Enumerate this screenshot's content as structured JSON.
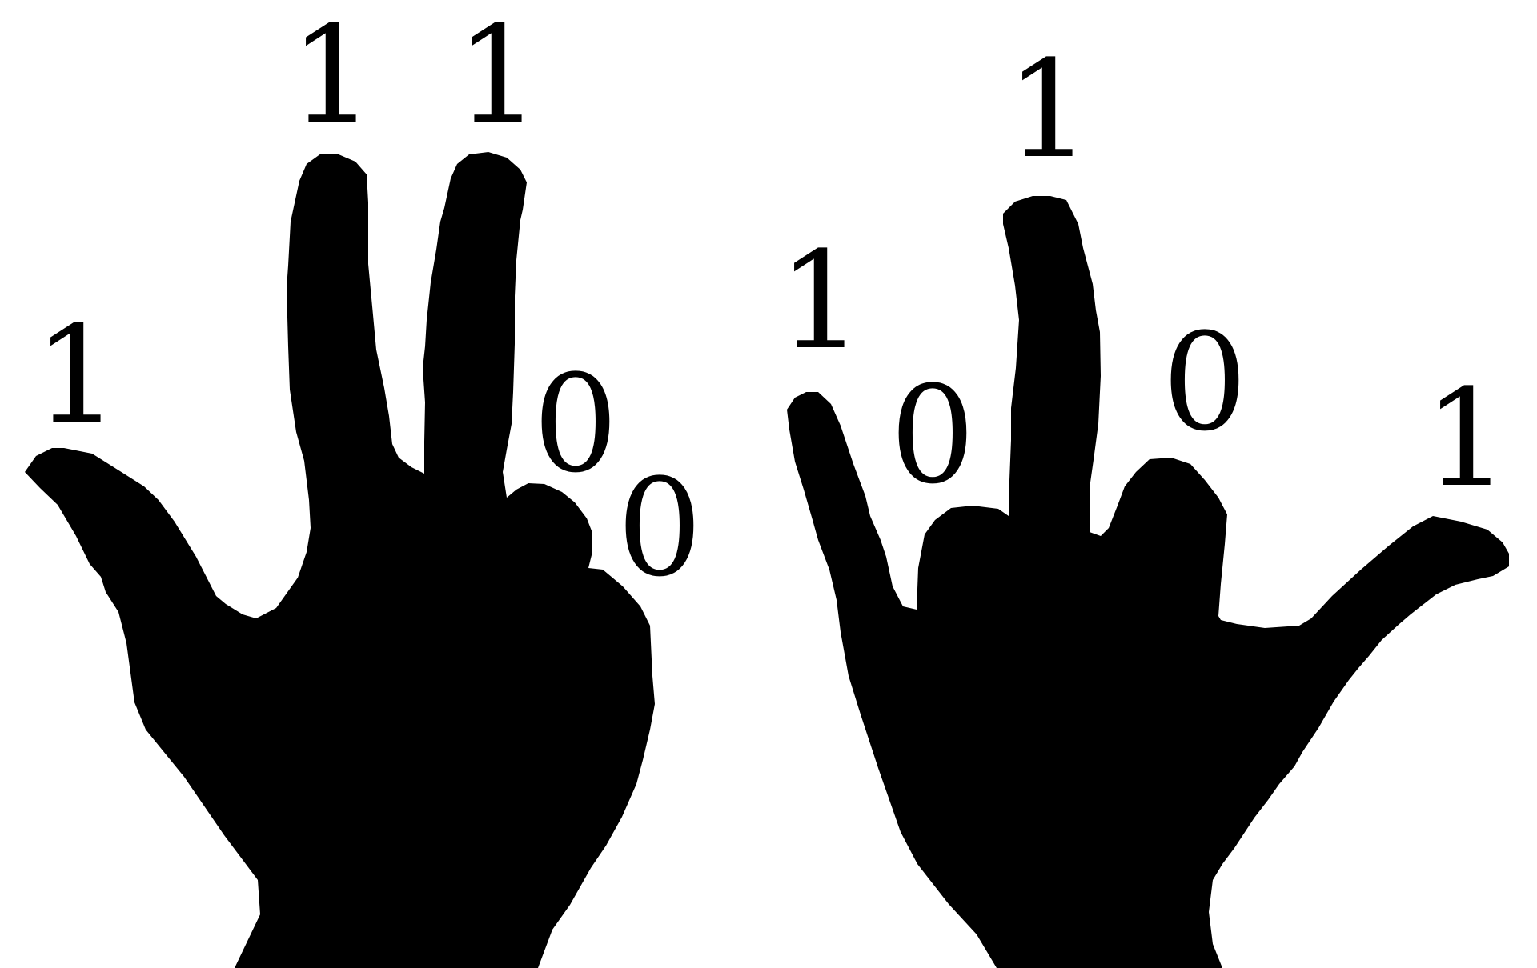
{
  "colors": {
    "background": "#ffffff",
    "silhouette": "#000000",
    "digit": "#000000"
  },
  "left_hand": {
    "fingers": [
      {
        "finger": "thumb",
        "label": "1",
        "raised": true
      },
      {
        "finger": "index",
        "label": "1",
        "raised": true
      },
      {
        "finger": "middle",
        "label": "1",
        "raised": true
      },
      {
        "finger": "ring",
        "label": "0",
        "raised": false
      },
      {
        "finger": "pinky",
        "label": "0",
        "raised": false
      }
    ]
  },
  "right_hand": {
    "fingers": [
      {
        "finger": "pinky",
        "label": "1",
        "raised": true
      },
      {
        "finger": "ring",
        "label": "0",
        "raised": false
      },
      {
        "finger": "middle",
        "label": "1",
        "raised": true
      },
      {
        "finger": "index",
        "label": "0",
        "raised": false
      },
      {
        "finger": "thumb",
        "label": "1",
        "raised": true
      }
    ]
  }
}
